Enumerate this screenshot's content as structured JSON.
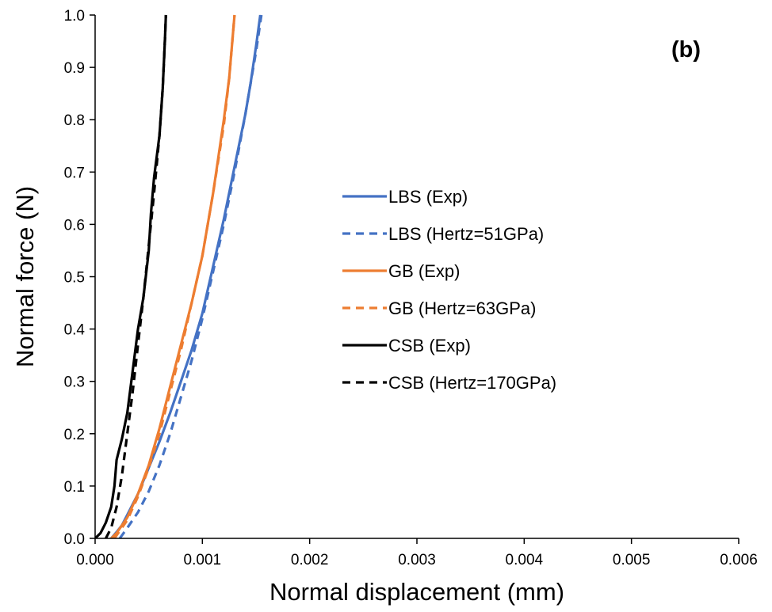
{
  "chart_data": {
    "type": "line",
    "panel_label": "(b)",
    "xlabel": "Normal displacement (mm)",
    "ylabel": "Normal force (N)",
    "xlim": [
      0,
      0.006
    ],
    "ylim": [
      0,
      1.0
    ],
    "x_ticks": [
      0,
      0.001,
      0.002,
      0.003,
      0.004,
      0.005,
      0.006
    ],
    "x_tick_labels": [
      "0.000",
      "0.001",
      "0.002",
      "0.003",
      "0.004",
      "0.005",
      "0.006"
    ],
    "y_ticks": [
      0,
      0.1,
      0.2,
      0.3,
      0.4,
      0.5,
      0.6,
      0.7,
      0.8,
      0.9,
      1.0
    ],
    "y_tick_labels": [
      "0.0",
      "0.1",
      "0.2",
      "0.3",
      "0.4",
      "0.5",
      "0.6",
      "0.7",
      "0.8",
      "0.9",
      "1.0"
    ],
    "grid": false,
    "legend_position": "center-right",
    "series": [
      {
        "name": "LBS (Exp)",
        "color": "#4472C4",
        "dash": "solid",
        "points": [
          [
            0.00015,
            0
          ],
          [
            0.0002,
            0.012
          ],
          [
            0.00025,
            0.025
          ],
          [
            0.0003,
            0.045
          ],
          [
            0.0004,
            0.085
          ],
          [
            0.0005,
            0.135
          ],
          [
            0.0006,
            0.185
          ],
          [
            0.0007,
            0.24
          ],
          [
            0.0008,
            0.3
          ],
          [
            0.0009,
            0.36
          ],
          [
            0.001,
            0.43
          ],
          [
            0.0011,
            0.52
          ],
          [
            0.0012,
            0.61
          ],
          [
            0.0013,
            0.71
          ],
          [
            0.0014,
            0.81
          ],
          [
            0.00145,
            0.87
          ],
          [
            0.0015,
            0.94
          ],
          [
            0.00154,
            1.0
          ]
        ]
      },
      {
        "name": "LBS (Hertz=51GPa)",
        "color": "#4472C4",
        "dash": "dashed",
        "points": [
          [
            0.00023,
            0
          ],
          [
            0.0003,
            0.02
          ],
          [
            0.0004,
            0.05
          ],
          [
            0.0005,
            0.09
          ],
          [
            0.0006,
            0.14
          ],
          [
            0.0007,
            0.2
          ],
          [
            0.0008,
            0.27
          ],
          [
            0.0009,
            0.34
          ],
          [
            0.001,
            0.42
          ],
          [
            0.0011,
            0.51
          ],
          [
            0.0012,
            0.6
          ],
          [
            0.0013,
            0.7
          ],
          [
            0.0014,
            0.81
          ],
          [
            0.0015,
            0.93
          ],
          [
            0.00155,
            1.0
          ]
        ]
      },
      {
        "name": "GB (Exp)",
        "color": "#ED7D31",
        "dash": "solid",
        "points": [
          [
            0.00015,
            0
          ],
          [
            0.0002,
            0.01
          ],
          [
            0.0003,
            0.04
          ],
          [
            0.0004,
            0.085
          ],
          [
            0.0005,
            0.14
          ],
          [
            0.0006,
            0.21
          ],
          [
            0.0007,
            0.29
          ],
          [
            0.0008,
            0.37
          ],
          [
            0.0009,
            0.45
          ],
          [
            0.001,
            0.54
          ],
          [
            0.0011,
            0.66
          ],
          [
            0.0012,
            0.8
          ],
          [
            0.00125,
            0.88
          ],
          [
            0.0013,
            1.0
          ]
        ]
      },
      {
        "name": "GB (Hertz=63GPa)",
        "color": "#ED7D31",
        "dash": "dashed",
        "points": [
          [
            0.00018,
            0
          ],
          [
            0.0003,
            0.035
          ],
          [
            0.0004,
            0.08
          ],
          [
            0.0005,
            0.135
          ],
          [
            0.0006,
            0.2
          ],
          [
            0.0007,
            0.28
          ],
          [
            0.0008,
            0.36
          ],
          [
            0.0009,
            0.45
          ],
          [
            0.001,
            0.54
          ],
          [
            0.0011,
            0.66
          ],
          [
            0.0012,
            0.79
          ],
          [
            0.00125,
            0.88
          ],
          [
            0.0013,
            1.0
          ]
        ]
      },
      {
        "name": "CSB (Exp)",
        "color": "#000000",
        "dash": "solid",
        "points": [
          [
            0,
            0
          ],
          [
            5e-05,
            0.01
          ],
          [
            0.0001,
            0.03
          ],
          [
            0.00015,
            0.06
          ],
          [
            0.00018,
            0.1
          ],
          [
            0.0002,
            0.15
          ],
          [
            0.00025,
            0.19
          ],
          [
            0.0003,
            0.24
          ],
          [
            0.00035,
            0.32
          ],
          [
            0.0004,
            0.4
          ],
          [
            0.00045,
            0.46
          ],
          [
            0.0005,
            0.55
          ],
          [
            0.00052,
            0.62
          ],
          [
            0.00055,
            0.69
          ],
          [
            0.0006,
            0.77
          ],
          [
            0.00063,
            0.86
          ],
          [
            0.00065,
            0.95
          ],
          [
            0.00066,
            1.0
          ]
        ]
      },
      {
        "name": "CSB (Hertz=170GPa)",
        "color": "#000000",
        "dash": "dashed",
        "points": [
          [
            0.0001,
            0
          ],
          [
            0.00015,
            0.02
          ],
          [
            0.0002,
            0.06
          ],
          [
            0.00025,
            0.12
          ],
          [
            0.0003,
            0.2
          ],
          [
            0.00035,
            0.28
          ],
          [
            0.0004,
            0.37
          ],
          [
            0.00045,
            0.46
          ],
          [
            0.0005,
            0.56
          ],
          [
            0.00055,
            0.66
          ],
          [
            0.0006,
            0.77
          ],
          [
            0.00063,
            0.86
          ],
          [
            0.00065,
            0.95
          ],
          [
            0.00066,
            1.0
          ]
        ]
      }
    ]
  }
}
